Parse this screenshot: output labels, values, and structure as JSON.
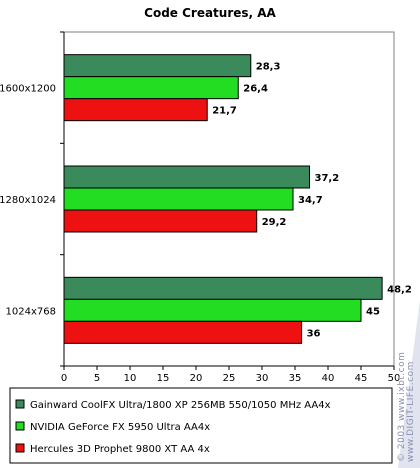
{
  "chart_data": {
    "type": "bar",
    "orientation": "horizontal",
    "title": "Code Creatures, AA",
    "categories": [
      "1600x1200",
      "1280x1024",
      "1024x768"
    ],
    "series": [
      {
        "name": "Gainward CoolFX Ultra/1800 XP 256MB 550/1050 MHz AA4x",
        "color": "#3a8a5c",
        "values": [
          28.3,
          37.2,
          48.2
        ],
        "labels": [
          "28,3",
          "37,2",
          "48,2"
        ]
      },
      {
        "name": "NVIDIA GeForce FX 5950 Ultra AA4x",
        "color": "#22dd22",
        "values": [
          26.4,
          34.7,
          45
        ],
        "labels": [
          "26,4",
          "34,7",
          "45"
        ]
      },
      {
        "name": "Hercules 3D Prophet 9800 XT AA 4x",
        "color": "#ee1111",
        "values": [
          21.7,
          29.2,
          36
        ],
        "labels": [
          "21,7",
          "29,2",
          "36"
        ]
      }
    ],
    "xlim": [
      0,
      50
    ],
    "xticks": [
      0,
      5,
      10,
      15,
      20,
      25,
      30,
      35,
      40,
      45,
      50
    ],
    "grid": false,
    "legend_position": "bottom"
  },
  "watermark": "© 2003 www.ixbt.com",
  "watermark2": "www.DIGIT-LIFE.com"
}
